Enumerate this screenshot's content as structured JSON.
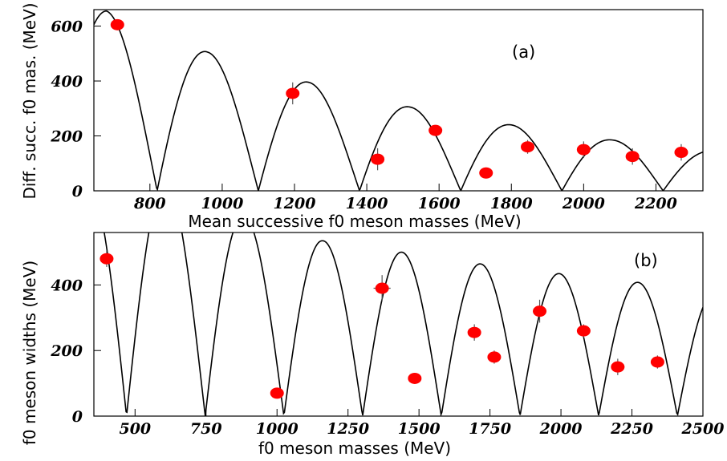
{
  "chart_data": [
    {
      "type": "scatter",
      "panel_tag": "(a)",
      "xlabel": "Mean successive f0 meson masses (MeV)",
      "ylabel": "Diff. succ. f0 mas. (MeV)",
      "xlim": [
        645,
        2330
      ],
      "ylim": [
        0,
        660
      ],
      "xticks": [
        800,
        1000,
        1200,
        1400,
        1600,
        1800,
        2000,
        2200
      ],
      "yticks": [
        0,
        200,
        400,
        600
      ],
      "curve": {
        "shape": "damped |cos|",
        "zeros": [
          820,
          1100,
          1380,
          1660,
          1940,
          2220
        ],
        "peaks": [
          [
            680,
            655
          ],
          [
            960,
            505
          ],
          [
            1240,
            395
          ],
          [
            1520,
            305
          ],
          [
            1800,
            240
          ],
          [
            2080,
            185
          ],
          [
            2360,
            145
          ]
        ]
      },
      "points": [
        {
          "x": 710,
          "y": 605,
          "xerr": 0,
          "yerr": 0
        },
        {
          "x": 1195,
          "y": 355,
          "xerr": 0,
          "yerr": 40
        },
        {
          "x": 1430,
          "y": 115,
          "xerr": 0,
          "yerr": 40
        },
        {
          "x": 1590,
          "y": 220,
          "xerr": 0,
          "yerr": 12
        },
        {
          "x": 1730,
          "y": 65,
          "xerr": 0,
          "yerr": 20
        },
        {
          "x": 1845,
          "y": 160,
          "xerr": 0,
          "yerr": 25
        },
        {
          "x": 2000,
          "y": 150,
          "xerr": 0,
          "yerr": 30
        },
        {
          "x": 2135,
          "y": 125,
          "xerr": 0,
          "yerr": 30
        },
        {
          "x": 2270,
          "y": 140,
          "xerr": 0,
          "yerr": 30
        }
      ]
    },
    {
      "type": "scatter",
      "panel_tag": "(b)",
      "xlabel": "f0 meson masses (MeV)",
      "ylabel": "f0 meson widths (MeV)",
      "xlim": [
        355,
        2500
      ],
      "ylim": [
        0,
        560
      ],
      "xticks": [
        500,
        750,
        1000,
        1250,
        1500,
        1750,
        2000,
        2250,
        2500
      ],
      "yticks": [
        0,
        200,
        400
      ],
      "curve": {
        "shape": "damped |cos|",
        "zeros": [
          470,
          750,
          1030,
          1310,
          1570,
          1850,
          2130,
          2410
        ],
        "peaks": [
          [
            610,
            720
          ],
          [
            885,
            610
          ],
          [
            1160,
            535
          ],
          [
            1440,
            500
          ],
          [
            1710,
            465
          ],
          [
            1990,
            435
          ],
          [
            2270,
            408
          ],
          [
            2550,
            385
          ]
        ]
      },
      "points": [
        {
          "x": 400,
          "y": 480,
          "xerr": 0,
          "yerr": 25
        },
        {
          "x": 1000,
          "y": 70,
          "xerr": 0,
          "yerr": 5
        },
        {
          "x": 1370,
          "y": 390,
          "xerr": 30,
          "yerr": 40
        },
        {
          "x": 1485,
          "y": 115,
          "xerr": 0,
          "yerr": 5
        },
        {
          "x": 1695,
          "y": 255,
          "xerr": 0,
          "yerr": 25
        },
        {
          "x": 1765,
          "y": 180,
          "xerr": 0,
          "yerr": 20
        },
        {
          "x": 1925,
          "y": 320,
          "xerr": 0,
          "yerr": 35
        },
        {
          "x": 2080,
          "y": 260,
          "xerr": 0,
          "yerr": 20
        },
        {
          "x": 2200,
          "y": 150,
          "xerr": 0,
          "yerr": 25
        },
        {
          "x": 2340,
          "y": 165,
          "xerr": 0,
          "yerr": 20
        }
      ]
    }
  ]
}
